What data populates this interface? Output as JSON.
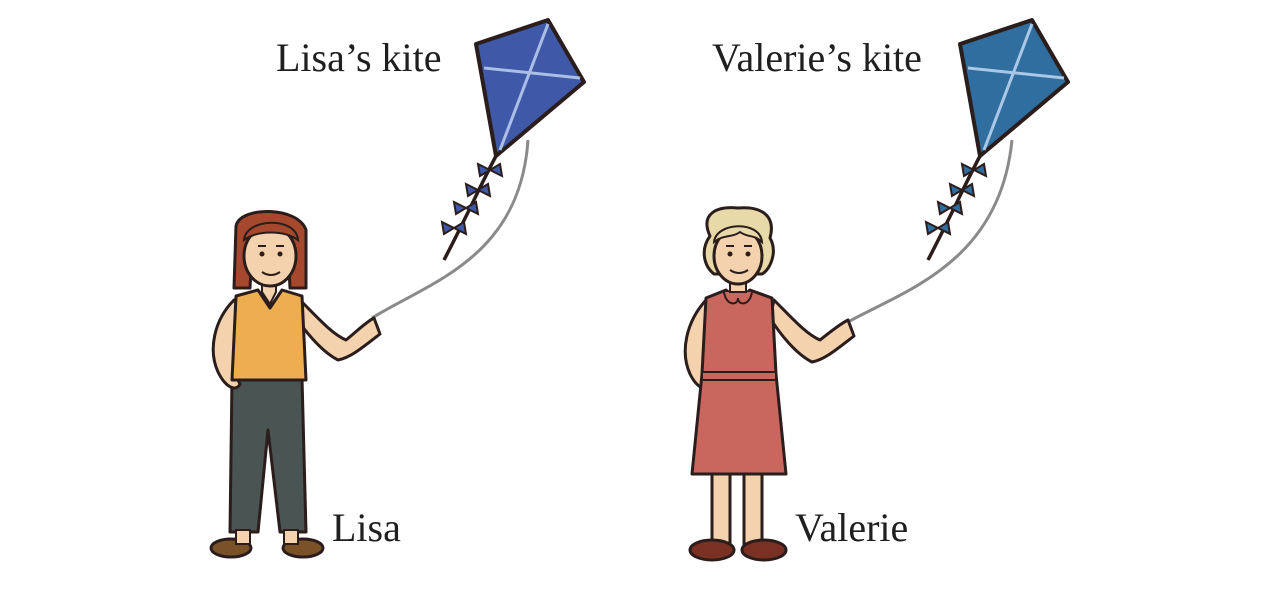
{
  "figures": [
    {
      "id": "lisa",
      "name_label": "Lisa",
      "kite_label": "Lisa’s kite",
      "kite_color": "#3f58a7",
      "hair_color": "#a5482d",
      "top_color": "#eeae4f",
      "bottom_color": "#4a5453",
      "shoe_color": "#7b5128"
    },
    {
      "id": "valerie",
      "name_label": "Valerie",
      "kite_label": "Valerie’s kite",
      "kite_color": "#2f6e9e",
      "hair_color": "#e8d9a8",
      "dress_color": "#c9675f",
      "shoe_color": "#7a3124"
    }
  ],
  "colors": {
    "skin": "#f5d2ae",
    "outline": "#2a1d1b",
    "string": "#8a8a8a",
    "kite_cross": "#a9bfe6"
  }
}
